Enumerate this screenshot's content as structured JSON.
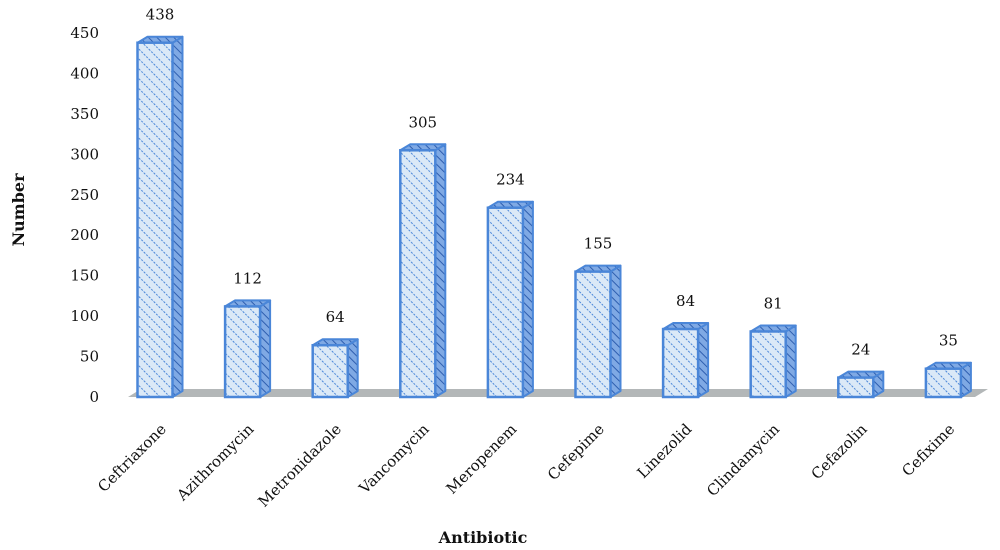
{
  "chart_data": {
    "type": "bar",
    "categories": [
      "Ceftriaxone",
      "Azithromycin",
      "Metronidazole",
      "Vancomycin",
      "Meropenem",
      "Cefepime",
      "Linezolid",
      "Clindamycin",
      "Cefazolin",
      "Cefixime"
    ],
    "values": [
      438,
      112,
      64,
      305,
      234,
      155,
      84,
      81,
      24,
      35
    ],
    "xlabel": "Antibiotic",
    "ylabel": "Number",
    "ylim": [
      0,
      450
    ],
    "yticks": [
      0,
      50,
      100,
      150,
      200,
      250,
      300,
      350,
      400,
      450
    ],
    "grid": false,
    "legend": "none",
    "data_labels": true,
    "style": "3d-hatched",
    "colors": {
      "bar_fill": "#dbe9f7",
      "bar_stroke": "#4a86d8",
      "hatch": "#4a86d8",
      "side": "#6b9ee0",
      "floor": "#b3b7b8"
    }
  }
}
